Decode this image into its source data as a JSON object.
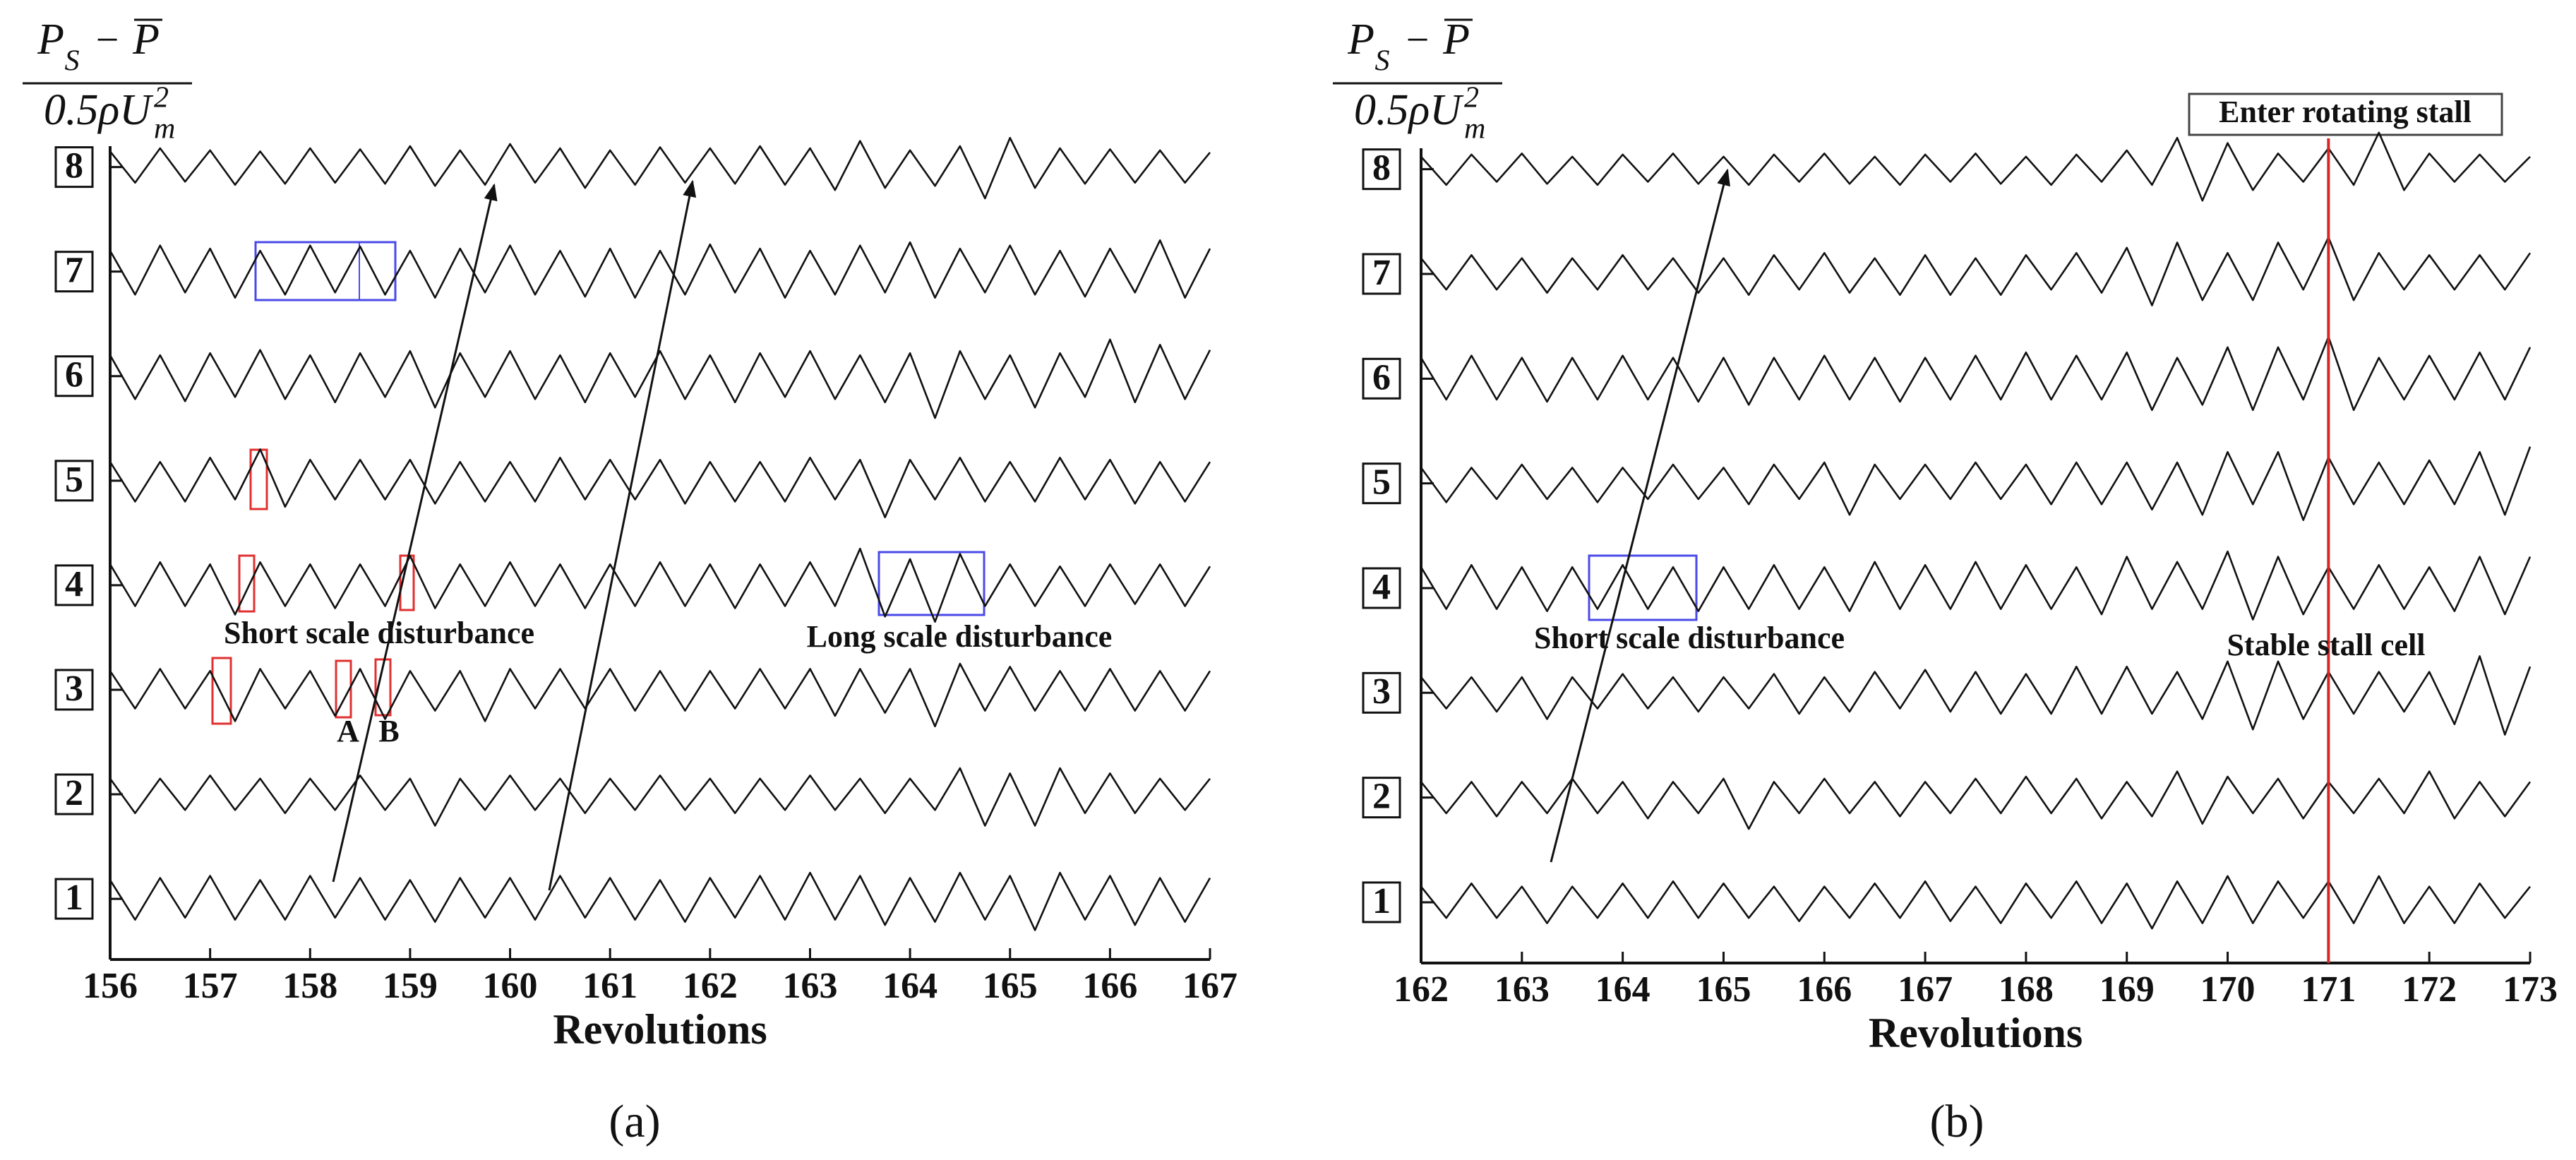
{
  "chart_data": [
    {
      "type": "line",
      "caption": "(a)",
      "xlabel": "Revolutions",
      "ylabel": {
        "numerator": [
          "P",
          "S",
          "−",
          "P"
        ],
        "denominator": [
          "0.5ρU",
          "m",
          "2"
        ]
      },
      "xlim": [
        156,
        167
      ],
      "xticks": [
        156,
        157,
        158,
        159,
        160,
        161,
        162,
        163,
        164,
        165,
        166,
        167
      ],
      "ylim": [
        0.42,
        8.2
      ],
      "yticks": [
        1,
        2,
        3,
        4,
        5,
        6,
        7,
        8
      ],
      "annotations": [
        "Short scale disturbance",
        "Long scale disturbance",
        "A",
        "B"
      ],
      "x": [
        156,
        156.25,
        156.5,
        156.75,
        157,
        157.25,
        157.5,
        157.75,
        158,
        158.25,
        158.5,
        158.75,
        159,
        159.25,
        159.5,
        159.75,
        160,
        160.25,
        160.5,
        160.75,
        161,
        161.25,
        161.5,
        161.75,
        162,
        162.25,
        162.5,
        162.75,
        163,
        163.25,
        163.5,
        163.75,
        164,
        164.25,
        164.5,
        164.75,
        165,
        165.25,
        165.5,
        165.75,
        166,
        166.25,
        166.5,
        166.75,
        167
      ],
      "series": [
        {
          "color": "#111111",
          "values": [
            0.18,
            -0.2,
            0.2,
            -0.18,
            0.22,
            -0.2,
            0.18,
            -0.2,
            0.22,
            -0.18,
            0.2,
            -0.2,
            0.18,
            -0.22,
            0.2,
            -0.18,
            0.2,
            -0.2,
            0.22,
            -0.18,
            0.2,
            -0.2,
            0.18,
            -0.22,
            0.2,
            -0.18,
            0.22,
            -0.2,
            0.25,
            -0.2,
            0.22,
            -0.25,
            0.2,
            -0.22,
            0.25,
            -0.2,
            0.22,
            -0.3,
            0.25,
            -0.2,
            0.22,
            -0.25,
            0.2,
            -0.22,
            0.2
          ]
        },
        {
          "color": "#111111",
          "values": [
            0.15,
            -0.18,
            0.15,
            -0.15,
            0.18,
            -0.15,
            0.15,
            -0.18,
            0.15,
            -0.15,
            0.18,
            -0.15,
            0.15,
            -0.3,
            0.15,
            -0.15,
            0.18,
            -0.15,
            0.15,
            -0.18,
            0.15,
            -0.15,
            0.18,
            -0.15,
            0.15,
            -0.18,
            0.15,
            -0.15,
            0.18,
            -0.15,
            0.15,
            -0.18,
            0.15,
            -0.15,
            0.25,
            -0.3,
            0.2,
            -0.3,
            0.25,
            -0.18,
            0.2,
            -0.18,
            0.15,
            -0.15,
            0.15
          ]
        },
        {
          "color": "#111111",
          "values": [
            0.18,
            -0.18,
            0.2,
            -0.18,
            0.18,
            -0.3,
            0.2,
            -0.18,
            0.18,
            -0.25,
            0.2,
            -0.28,
            0.18,
            -0.2,
            0.18,
            -0.3,
            0.2,
            -0.18,
            0.2,
            -0.18,
            0.2,
            -0.2,
            0.18,
            -0.2,
            0.18,
            -0.18,
            0.2,
            -0.18,
            0.2,
            -0.25,
            0.2,
            -0.22,
            0.2,
            -0.35,
            0.25,
            -0.2,
            0.22,
            -0.2,
            0.18,
            -0.2,
            0.2,
            -0.2,
            0.18,
            -0.2,
            0.18
          ]
        },
        {
          "color": "#111111",
          "values": [
            0.2,
            -0.2,
            0.22,
            -0.2,
            0.2,
            -0.28,
            0.22,
            -0.2,
            0.2,
            -0.22,
            0.2,
            -0.2,
            0.28,
            -0.22,
            0.2,
            -0.2,
            0.22,
            -0.2,
            0.2,
            -0.22,
            0.2,
            -0.2,
            0.22,
            -0.2,
            0.2,
            -0.22,
            0.2,
            -0.2,
            0.22,
            -0.2,
            0.35,
            -0.3,
            0.25,
            -0.35,
            0.3,
            -0.2,
            0.2,
            -0.2,
            0.18,
            -0.2,
            0.2,
            -0.18,
            0.2,
            -0.2,
            0.18
          ]
        },
        {
          "color": "#111111",
          "values": [
            0.18,
            -0.2,
            0.18,
            -0.2,
            0.22,
            -0.18,
            0.3,
            -0.25,
            0.2,
            -0.18,
            0.2,
            -0.18,
            0.2,
            -0.22,
            0.18,
            -0.2,
            0.18,
            -0.2,
            0.22,
            -0.18,
            0.2,
            -0.18,
            0.2,
            -0.22,
            0.18,
            -0.2,
            0.18,
            -0.2,
            0.22,
            -0.18,
            0.2,
            -0.35,
            0.2,
            -0.18,
            0.22,
            -0.2,
            0.18,
            -0.2,
            0.22,
            -0.18,
            0.2,
            -0.22,
            0.18,
            -0.2,
            0.18
          ]
        },
        {
          "color": "#111111",
          "values": [
            0.2,
            -0.22,
            0.2,
            -0.24,
            0.22,
            -0.2,
            0.25,
            -0.22,
            0.2,
            -0.25,
            0.22,
            -0.2,
            0.24,
            -0.3,
            0.22,
            -0.2,
            0.24,
            -0.22,
            0.2,
            -0.25,
            0.22,
            -0.2,
            0.24,
            -0.22,
            0.2,
            -0.25,
            0.22,
            -0.2,
            0.24,
            -0.22,
            0.2,
            -0.25,
            0.22,
            -0.4,
            0.24,
            -0.22,
            0.2,
            -0.3,
            0.22,
            -0.2,
            0.35,
            -0.25,
            0.3,
            -0.22,
            0.25
          ]
        },
        {
          "color": "#111111",
          "values": [
            0.2,
            -0.22,
            0.25,
            -0.2,
            0.22,
            -0.25,
            0.2,
            -0.22,
            0.25,
            -0.2,
            0.24,
            -0.22,
            0.2,
            -0.25,
            0.22,
            -0.2,
            0.25,
            -0.22,
            0.2,
            -0.24,
            0.22,
            -0.25,
            0.2,
            -0.22,
            0.26,
            -0.2,
            0.22,
            -0.25,
            0.2,
            -0.22,
            0.25,
            -0.2,
            0.28,
            -0.25,
            0.22,
            -0.2,
            0.25,
            -0.22,
            0.2,
            -0.24,
            0.22,
            -0.2,
            0.3,
            -0.25,
            0.22
          ]
        },
        {
          "color": "#111111",
          "values": [
            0.15,
            -0.15,
            0.18,
            -0.14,
            0.16,
            -0.17,
            0.15,
            -0.16,
            0.18,
            -0.15,
            0.17,
            -0.16,
            0.2,
            -0.18,
            0.16,
            -0.17,
            0.22,
            -0.15,
            0.18,
            -0.2,
            0.16,
            -0.17,
            0.19,
            -0.15,
            0.18,
            -0.16,
            0.2,
            -0.17,
            0.18,
            -0.22,
            0.25,
            -0.2,
            0.16,
            -0.18,
            0.2,
            -0.3,
            0.28,
            -0.2,
            0.18,
            -0.16,
            0.17,
            -0.15,
            0.16,
            -0.15,
            0.14
          ]
        }
      ]
    },
    {
      "type": "line",
      "caption": "(b)",
      "xlabel": "Revolutions",
      "ylabel": {
        "numerator": [
          "P",
          "S",
          "−",
          "P"
        ],
        "denominator": [
          "0.5ρU",
          "m",
          "2"
        ]
      },
      "xlim": [
        162,
        173
      ],
      "xticks": [
        162,
        163,
        164,
        165,
        166,
        167,
        168,
        169,
        170,
        171,
        172,
        173
      ],
      "ylim": [
        0.42,
        8.2
      ],
      "yticks": [
        1,
        2,
        3,
        4,
        5,
        6,
        7,
        8
      ],
      "vline": 171,
      "vline_color": "#d62728",
      "annotations": [
        "Enter rotating stall",
        "Short scale disturbance",
        "Stable stall cell"
      ],
      "x": [
        162,
        162.25,
        162.5,
        162.75,
        163,
        163.25,
        163.5,
        163.75,
        164,
        164.25,
        164.5,
        164.75,
        165,
        165.25,
        165.5,
        165.75,
        166,
        166.25,
        166.5,
        166.75,
        167,
        167.25,
        167.5,
        167.75,
        168,
        168.25,
        168.5,
        168.75,
        169,
        169.25,
        169.5,
        169.75,
        170,
        170.25,
        170.5,
        170.75,
        171,
        171.25,
        171.5,
        171.75,
        172,
        172.25,
        172.5,
        172.75,
        173
      ],
      "series": [
        {
          "color": "#111111",
          "values": [
            0.15,
            -0.15,
            0.18,
            -0.15,
            0.15,
            -0.2,
            0.15,
            -0.15,
            0.18,
            -0.15,
            0.2,
            -0.15,
            0.18,
            -0.15,
            0.15,
            -0.18,
            0.15,
            -0.15,
            0.18,
            -0.15,
            0.2,
            -0.18,
            0.15,
            -0.2,
            0.18,
            -0.15,
            0.2,
            -0.2,
            0.18,
            -0.25,
            0.2,
            -0.2,
            0.25,
            -0.2,
            0.2,
            -0.15,
            0.2,
            -0.2,
            0.25,
            -0.2,
            0.15,
            -0.2,
            0.18,
            -0.15,
            0.15
          ]
        },
        {
          "color": "#111111",
          "values": [
            0.15,
            -0.15,
            0.15,
            -0.18,
            0.15,
            -0.15,
            0.18,
            -0.15,
            0.15,
            -0.2,
            0.15,
            -0.15,
            0.18,
            -0.3,
            0.15,
            -0.15,
            0.18,
            -0.15,
            0.15,
            -0.18,
            0.15,
            -0.15,
            0.18,
            -0.15,
            0.2,
            -0.15,
            0.18,
            -0.2,
            0.15,
            -0.18,
            0.25,
            -0.25,
            0.2,
            -0.15,
            0.18,
            -0.2,
            0.15,
            -0.15,
            0.18,
            -0.15,
            0.25,
            -0.2,
            0.15,
            -0.18,
            0.15
          ]
        },
        {
          "color": "#111111",
          "values": [
            0.15,
            -0.15,
            0.15,
            -0.18,
            0.15,
            -0.25,
            0.15,
            -0.15,
            0.18,
            -0.15,
            0.15,
            -0.18,
            0.15,
            -0.15,
            0.18,
            -0.2,
            0.15,
            -0.18,
            0.2,
            -0.15,
            0.22,
            -0.18,
            0.2,
            -0.2,
            0.18,
            -0.2,
            0.25,
            -0.2,
            0.25,
            -0.2,
            0.2,
            -0.25,
            0.3,
            -0.35,
            0.3,
            -0.25,
            0.2,
            -0.2,
            0.2,
            -0.18,
            0.2,
            -0.3,
            0.35,
            -0.4,
            0.25
          ]
        },
        {
          "color": "#111111",
          "values": [
            0.2,
            -0.2,
            0.22,
            -0.2,
            0.2,
            -0.22,
            0.2,
            -0.2,
            0.22,
            -0.2,
            0.2,
            -0.22,
            0.2,
            -0.2,
            0.22,
            -0.2,
            0.2,
            -0.22,
            0.25,
            -0.2,
            0.22,
            -0.2,
            0.25,
            -0.2,
            0.22,
            -0.2,
            0.2,
            -0.25,
            0.3,
            -0.2,
            0.25,
            -0.2,
            0.35,
            -0.3,
            0.3,
            -0.25,
            0.2,
            -0.2,
            0.22,
            -0.2,
            0.2,
            -0.22,
            0.3,
            -0.25,
            0.3
          ]
        },
        {
          "color": "#111111",
          "values": [
            0.15,
            -0.18,
            0.15,
            -0.15,
            0.18,
            -0.15,
            0.15,
            -0.18,
            0.15,
            -0.15,
            0.18,
            -0.15,
            0.15,
            -0.2,
            0.18,
            -0.15,
            0.2,
            -0.3,
            0.18,
            -0.15,
            0.18,
            -0.15,
            0.2,
            -0.15,
            0.18,
            -0.2,
            0.2,
            -0.2,
            0.2,
            -0.25,
            0.2,
            -0.3,
            0.3,
            -0.2,
            0.3,
            -0.35,
            0.25,
            -0.2,
            0.2,
            -0.2,
            0.22,
            -0.2,
            0.3,
            -0.3,
            0.35
          ]
        },
        {
          "color": "#111111",
          "values": [
            0.2,
            -0.2,
            0.22,
            -0.2,
            0.2,
            -0.22,
            0.2,
            -0.2,
            0.22,
            -0.2,
            0.2,
            -0.22,
            0.2,
            -0.25,
            0.2,
            -0.2,
            0.22,
            -0.2,
            0.2,
            -0.22,
            0.2,
            -0.2,
            0.22,
            -0.2,
            0.25,
            -0.2,
            0.22,
            -0.2,
            0.25,
            -0.3,
            0.2,
            -0.25,
            0.3,
            -0.3,
            0.3,
            -0.2,
            0.4,
            -0.3,
            0.2,
            -0.2,
            0.22,
            -0.2,
            0.25,
            -0.2,
            0.3
          ]
        },
        {
          "color": "#111111",
          "values": [
            0.15,
            -0.15,
            0.18,
            -0.15,
            0.15,
            -0.18,
            0.15,
            -0.15,
            0.18,
            -0.15,
            0.15,
            -0.18,
            0.15,
            -0.2,
            0.18,
            -0.15,
            0.2,
            -0.18,
            0.15,
            -0.2,
            0.18,
            -0.2,
            0.15,
            -0.2,
            0.18,
            -0.15,
            0.2,
            -0.18,
            0.25,
            -0.3,
            0.3,
            -0.25,
            0.2,
            -0.25,
            0.3,
            -0.15,
            0.35,
            -0.25,
            0.2,
            -0.15,
            0.18,
            -0.15,
            0.18,
            -0.15,
            0.2
          ]
        },
        {
          "color": "#111111",
          "values": [
            0.12,
            -0.15,
            0.14,
            -0.12,
            0.15,
            -0.14,
            0.12,
            -0.15,
            0.14,
            -0.12,
            0.15,
            -0.14,
            0.12,
            -0.15,
            0.14,
            -0.12,
            0.15,
            -0.14,
            0.12,
            -0.15,
            0.14,
            -0.12,
            0.15,
            -0.14,
            0.12,
            -0.15,
            0.14,
            -0.12,
            0.18,
            -0.15,
            0.3,
            -0.3,
            0.25,
            -0.2,
            0.15,
            -0.12,
            0.2,
            -0.15,
            0.35,
            -0.2,
            0.15,
            -0.12,
            0.14,
            -0.12,
            0.12
          ]
        }
      ]
    }
  ]
}
